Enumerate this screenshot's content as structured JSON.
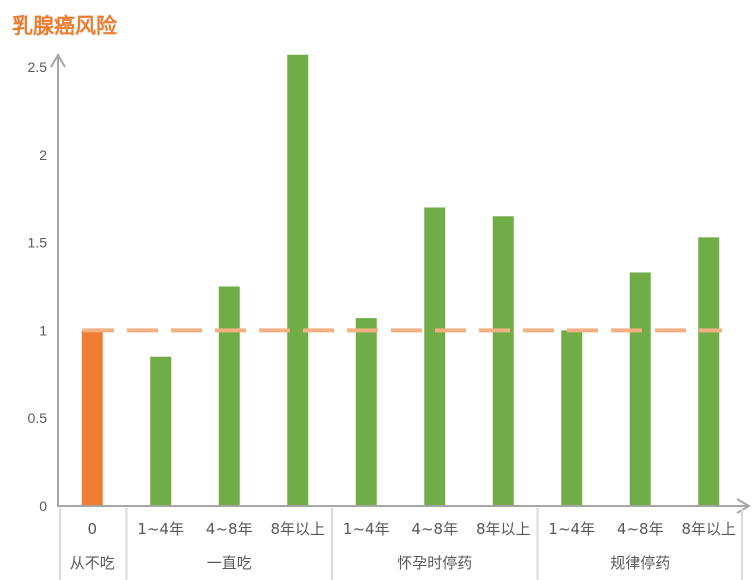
{
  "title": "乳腺癌风险",
  "colors": {
    "title": "#ED7D31",
    "baseline_bar": "#ED7D31",
    "bars": "#70AD47",
    "reference_line": "#F4B183",
    "axis": "#A6A6A6",
    "text": "#595959"
  },
  "chart_data": {
    "type": "bar",
    "title": "乳腺癌风险",
    "xlabel": "",
    "ylabel": "",
    "ylim": [
      0,
      2.5
    ],
    "yticks": [
      "0",
      "0.5",
      "1",
      "1.5",
      "2",
      "2.5"
    ],
    "grid": false,
    "legend": null,
    "groups": [
      {
        "label": "从不吃",
        "categories": [
          "0"
        ],
        "values": [
          1.0
        ]
      },
      {
        "label": "一直吃",
        "categories": [
          "1~4年",
          "4~8年",
          "8年以上"
        ],
        "values": [
          0.85,
          1.25,
          2.57
        ]
      },
      {
        "label": "怀孕时停药",
        "categories": [
          "1~4年",
          "4~8年",
          "8年以上"
        ],
        "values": [
          1.07,
          1.7,
          1.65
        ]
      },
      {
        "label": "规律停药",
        "categories": [
          "1~4年",
          "4~8年",
          "8年以上"
        ],
        "values": [
          1.0,
          1.33,
          1.53
        ]
      }
    ],
    "categories": [
      "0",
      "1~4年",
      "4~8年",
      "8年以上",
      "1~4年",
      "4~8年",
      "8年以上",
      "1~4年",
      "4~8年",
      "8年以上"
    ],
    "values": [
      1.0,
      0.85,
      1.25,
      2.57,
      1.07,
      1.7,
      1.65,
      1.0,
      1.33,
      1.53
    ],
    "annotations": [
      {
        "type": "reference_line",
        "y": 1.0,
        "style": "dashed"
      }
    ]
  }
}
